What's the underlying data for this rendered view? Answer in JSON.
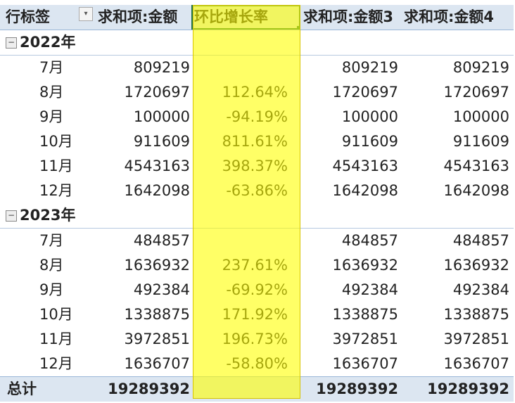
{
  "headers": {
    "row_label": "行标签",
    "sum_amount": "求和项:金额",
    "mom_growth": "环比增长率",
    "sum_amount3": "求和项:金额3",
    "sum_amount4": "求和项:金额4"
  },
  "groups": [
    {
      "year": "2022年",
      "rows": [
        {
          "month": "7月",
          "amount": "809219",
          "growth": "",
          "amount3": "809219",
          "amount4": "809219"
        },
        {
          "month": "8月",
          "amount": "1720697",
          "growth": "112.64%",
          "amount3": "1720697",
          "amount4": "1720697"
        },
        {
          "month": "9月",
          "amount": "100000",
          "growth": "-94.19%",
          "amount3": "100000",
          "amount4": "100000"
        },
        {
          "month": "10月",
          "amount": "911609",
          "growth": "811.61%",
          "amount3": "911609",
          "amount4": "911609"
        },
        {
          "month": "11月",
          "amount": "4543163",
          "growth": "398.37%",
          "amount3": "4543163",
          "amount4": "4543163"
        },
        {
          "month": "12月",
          "amount": "1642098",
          "growth": "-63.86%",
          "amount3": "1642098",
          "amount4": "1642098"
        }
      ]
    },
    {
      "year": "2023年",
      "rows": [
        {
          "month": "7月",
          "amount": "484857",
          "growth": "",
          "amount3": "484857",
          "amount4": "484857"
        },
        {
          "month": "8月",
          "amount": "1636932",
          "growth": "237.61%",
          "amount3": "1636932",
          "amount4": "1636932"
        },
        {
          "month": "9月",
          "amount": "492384",
          "growth": "-69.92%",
          "amount3": "492384",
          "amount4": "492384"
        },
        {
          "month": "10月",
          "amount": "1338875",
          "growth": "171.92%",
          "amount3": "1338875",
          "amount4": "1338875"
        },
        {
          "month": "11月",
          "amount": "3972851",
          "growth": "196.73%",
          "amount3": "3972851",
          "amount4": "3972851"
        },
        {
          "month": "12月",
          "amount": "1636707",
          "growth": "-58.80%",
          "amount3": "1636707",
          "amount4": "1636707"
        }
      ]
    }
  ],
  "total": {
    "label": "总计",
    "amount": "19289392",
    "growth": "",
    "amount3": "19289392",
    "amount4": "19289392"
  },
  "colors": {
    "header_bg": "#dce6f1",
    "highlight": "#ffff00",
    "selection": "#217346"
  }
}
